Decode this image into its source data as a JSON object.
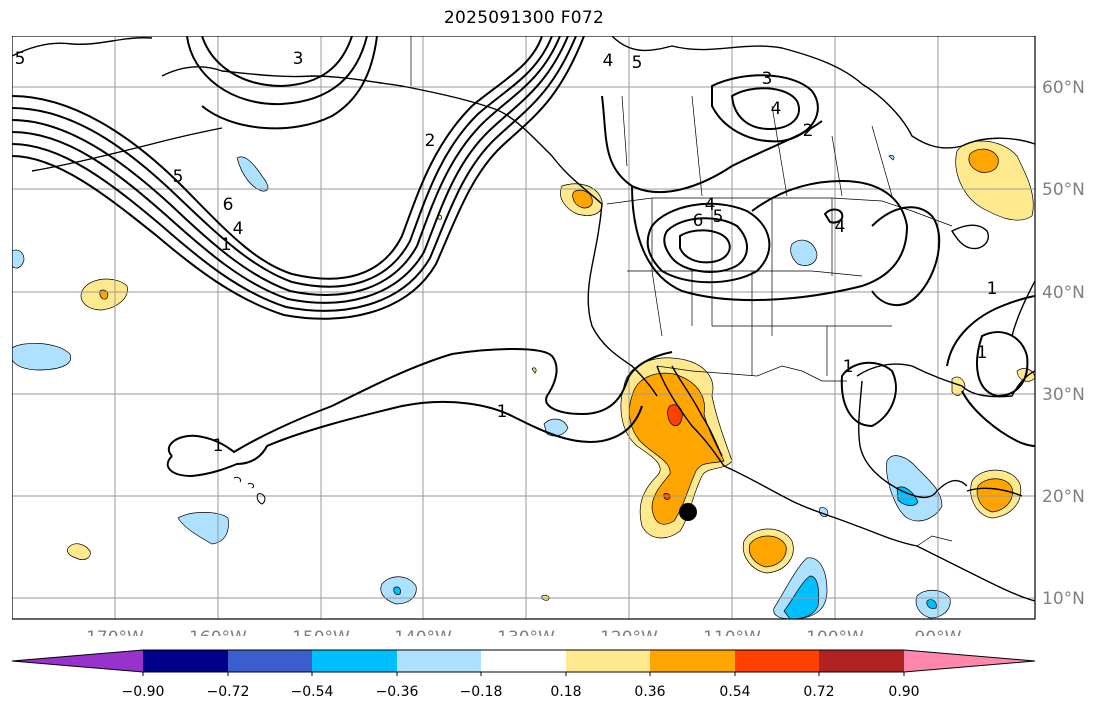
{
  "title": "2025091300 F072",
  "map": {
    "lon_labels": [
      "170°W",
      "160°W",
      "150°W",
      "140°W",
      "130°W",
      "120°W",
      "110°W",
      "100°W",
      "90°W"
    ],
    "lat_labels": [
      "60°N",
      "50°N",
      "40°N",
      "30°N",
      "20°N",
      "10°N"
    ],
    "contour_labels": [
      "3",
      "5",
      "4",
      "5",
      "3",
      "4",
      "2",
      "6",
      "5",
      "4",
      "6",
      "5",
      "4",
      "2",
      "1",
      "1",
      "1",
      "1",
      "1",
      "4",
      "1"
    ],
    "marker": "storm-center-dot"
  },
  "colorbar": {
    "tick_labels": [
      "−0.90",
      "−0.72",
      "−0.54",
      "−0.36",
      "−0.18",
      "0.18",
      "0.36",
      "0.54",
      "0.72",
      "0.90"
    ],
    "colors": [
      "#9932CC",
      "#00008B",
      "#3A5FCD",
      "#00BFFF",
      "#ADE1FF",
      "#FFFFFF",
      "#FFE98F",
      "#FFA500",
      "#FF4000",
      "#B22222",
      "#FF88AA"
    ]
  }
}
